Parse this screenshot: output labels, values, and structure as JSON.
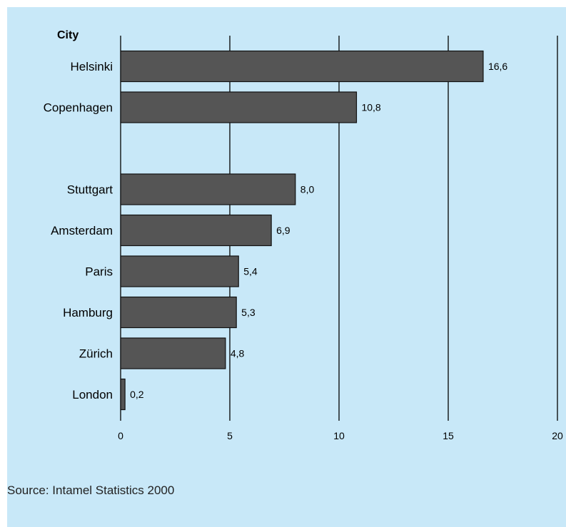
{
  "chart_data": {
    "type": "bar",
    "orientation": "horizontal",
    "category_axis_title": "City",
    "categories": [
      "Helsinki",
      "Copenhagen",
      "",
      "Stuttgart",
      "Amsterdam",
      "Paris",
      "Hamburg",
      "Zürich",
      "London"
    ],
    "values": [
      16.6,
      10.8,
      null,
      8.0,
      6.9,
      5.4,
      5.3,
      4.8,
      0.2
    ],
    "value_labels": [
      "16,6",
      "10,8",
      "",
      "8,0",
      "6,9",
      "5,4",
      "5,3",
      "4,8",
      "0,2"
    ],
    "xticks": [
      0,
      5,
      10,
      15,
      20
    ],
    "xtick_labels": [
      "0",
      "5",
      "10",
      "15",
      "20"
    ],
    "xlim": [
      0,
      20
    ],
    "grid": true,
    "title": "",
    "xlabel": "",
    "ylabel": "City",
    "colors": {
      "background": "#c8e8f8",
      "bar_fill": "#555555",
      "bar_stroke": "#111111",
      "grid": "#000000"
    }
  },
  "footer": {
    "source": "Source: Intamel Statistics 2000"
  }
}
